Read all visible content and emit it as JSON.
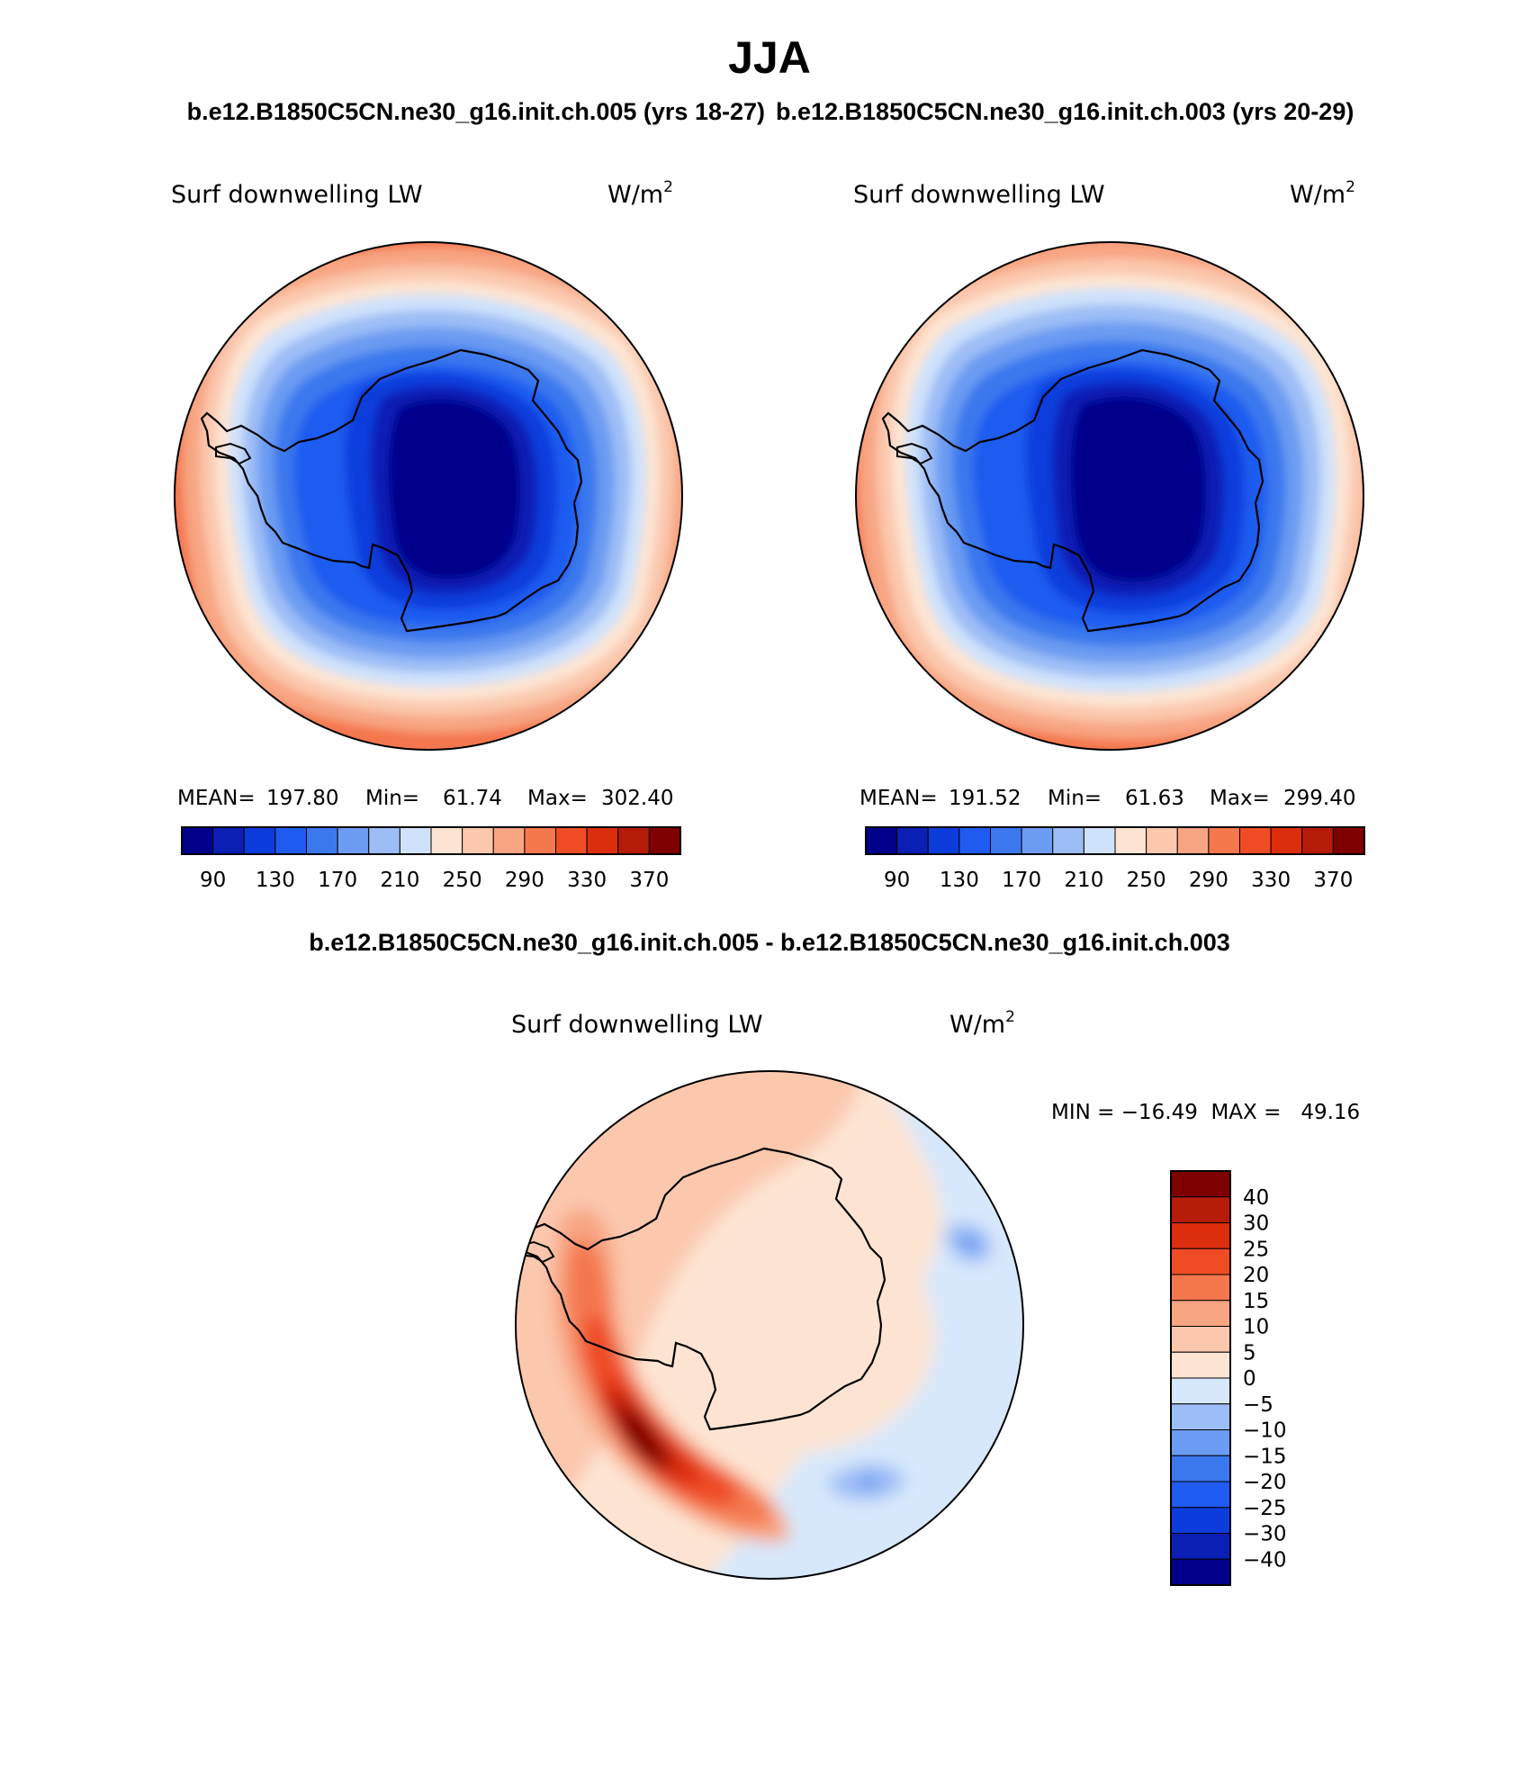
{
  "title": "JJA",
  "case_header_left": "b.e12.B1850C5CN.ne30_g16.init.ch.005 (yrs 18-27)",
  "case_header_right": "b.e12.B1850C5CN.ne30_g16.init.ch.003 (yrs 20-29)",
  "diff_header": "b.e12.B1850C5CN.ne30_g16.init.ch.005 - b.e12.B1850C5CN.ne30_g16.init.ch.003",
  "colors": {
    "abs_scale": [
      "#00008b",
      "#0b1fb5",
      "#0d3cdc",
      "#1f5bf0",
      "#3b78ee",
      "#6b9bf2",
      "#9dbdf6",
      "#cfe2fb",
      "#fde4d2",
      "#fbc7ad",
      "#f8a582",
      "#f4774d",
      "#ef4c26",
      "#dc2d0c",
      "#b61c07",
      "#7f0000"
    ],
    "diff_scale": [
      "#00008b",
      "#0b1fb5",
      "#0d3cdc",
      "#1f5bf0",
      "#3b78ee",
      "#6b9bf2",
      "#9dbdf6",
      "#d7e8fc",
      "#fde4d2",
      "#fbc7ad",
      "#f8a582",
      "#f4774d",
      "#ef4c26",
      "#dc2d0c",
      "#b61c07",
      "#7f0000"
    ]
  },
  "chart_data": [
    {
      "type": "heatmap",
      "projection": "south-polar-stereographic",
      "region": "Antarctica / Southern Ocean",
      "title": "Surf downwelling LW",
      "units_base": "W/m",
      "units_exp": "2",
      "stats": {
        "mean_label": "MEAN=",
        "mean": "197.80",
        "min_label": "Min=",
        "min": "61.74",
        "max_label": "Max=",
        "max": "302.40"
      },
      "colorbar_ticks": [
        "90",
        "130",
        "170",
        "210",
        "250",
        "290",
        "330",
        "370"
      ],
      "contour_levels": [
        70,
        90,
        110,
        130,
        150,
        170,
        190,
        210,
        230,
        250,
        270,
        290,
        310,
        330,
        350,
        370
      ]
    },
    {
      "type": "heatmap",
      "projection": "south-polar-stereographic",
      "region": "Antarctica / Southern Ocean",
      "title": "Surf downwelling LW",
      "units_base": "W/m",
      "units_exp": "2",
      "stats": {
        "mean_label": "MEAN=",
        "mean": "191.52",
        "min_label": "Min=",
        "min": "61.63",
        "max_label": "Max=",
        "max": "299.40"
      },
      "colorbar_ticks": [
        "90",
        "130",
        "170",
        "210",
        "250",
        "290",
        "330",
        "370"
      ],
      "contour_levels": [
        70,
        90,
        110,
        130,
        150,
        170,
        190,
        210,
        230,
        250,
        270,
        290,
        310,
        330,
        350,
        370
      ]
    },
    {
      "type": "heatmap",
      "projection": "south-polar-stereographic",
      "region": "Antarctica / Southern Ocean",
      "title": "Surf downwelling LW",
      "units_base": "W/m",
      "units_exp": "2",
      "minmax": "MIN = −16.49  MAX =   49.16",
      "colorbar_ticks": [
        "40",
        "30",
        "25",
        "20",
        "15",
        "10",
        "5",
        "0",
        "−5",
        "−10",
        "−15",
        "−20",
        "−25",
        "−30",
        "−40"
      ]
    }
  ]
}
